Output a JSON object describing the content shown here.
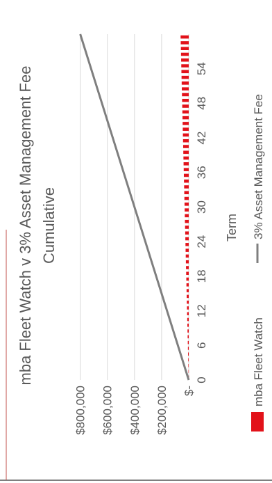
{
  "chart_data": {
    "type": "bar+line",
    "title": "mba Fleet Watch v 3% Asset Management Fee",
    "subtitle": "Cumulative",
    "xlabel": "Term",
    "ylabel": "",
    "x_tick_labels": [
      "0",
      "6",
      "12",
      "18",
      "24",
      "30",
      "36",
      "42",
      "48",
      "54"
    ],
    "y_tick_labels": [
      "$-",
      "$200,000",
      "$400,000",
      "$600,000",
      "$800,000"
    ],
    "ylim": [
      0,
      880000
    ],
    "xlim": [
      0,
      60
    ],
    "grid": true,
    "orientation": "rotated 90 degrees counter-clockwise",
    "legend_position": "bottom",
    "series": [
      {
        "name": "mba Fleet Watch",
        "kind": "bar",
        "color": "#e2121a",
        "x": [
          1,
          2,
          3,
          4,
          5,
          6,
          7,
          8,
          9,
          10,
          11,
          12,
          13,
          14,
          15,
          16,
          17,
          18,
          19,
          20,
          21,
          22,
          23,
          24,
          25,
          26,
          27,
          28,
          29,
          30,
          31,
          32,
          33,
          34,
          35,
          36,
          37,
          38,
          39,
          40,
          41,
          42,
          43,
          44,
          45,
          46,
          47,
          48,
          49,
          50,
          51,
          52,
          53,
          54,
          55,
          56,
          57,
          58,
          59,
          60
        ],
        "values": [
          1000,
          2000,
          3000,
          4000,
          5000,
          6000,
          7000,
          8000,
          9000,
          10000,
          11000,
          12000,
          13000,
          14000,
          15000,
          16000,
          17000,
          18000,
          19000,
          20000,
          21000,
          22000,
          23000,
          24000,
          25000,
          26000,
          27000,
          28000,
          29000,
          30000,
          31000,
          32000,
          33000,
          34000,
          35000,
          36000,
          37000,
          38000,
          39000,
          40000,
          41000,
          42000,
          43000,
          44000,
          45000,
          46000,
          47000,
          48000,
          49000,
          50000,
          51000,
          52000,
          53000,
          54000,
          55000,
          56000,
          57000,
          58000,
          59000,
          60000
        ]
      },
      {
        "name": "3% Asset Management Fee",
        "kind": "line",
        "color": "#7f7f7f",
        "x": [
          0,
          60
        ],
        "values": [
          0,
          800000
        ]
      }
    ]
  }
}
